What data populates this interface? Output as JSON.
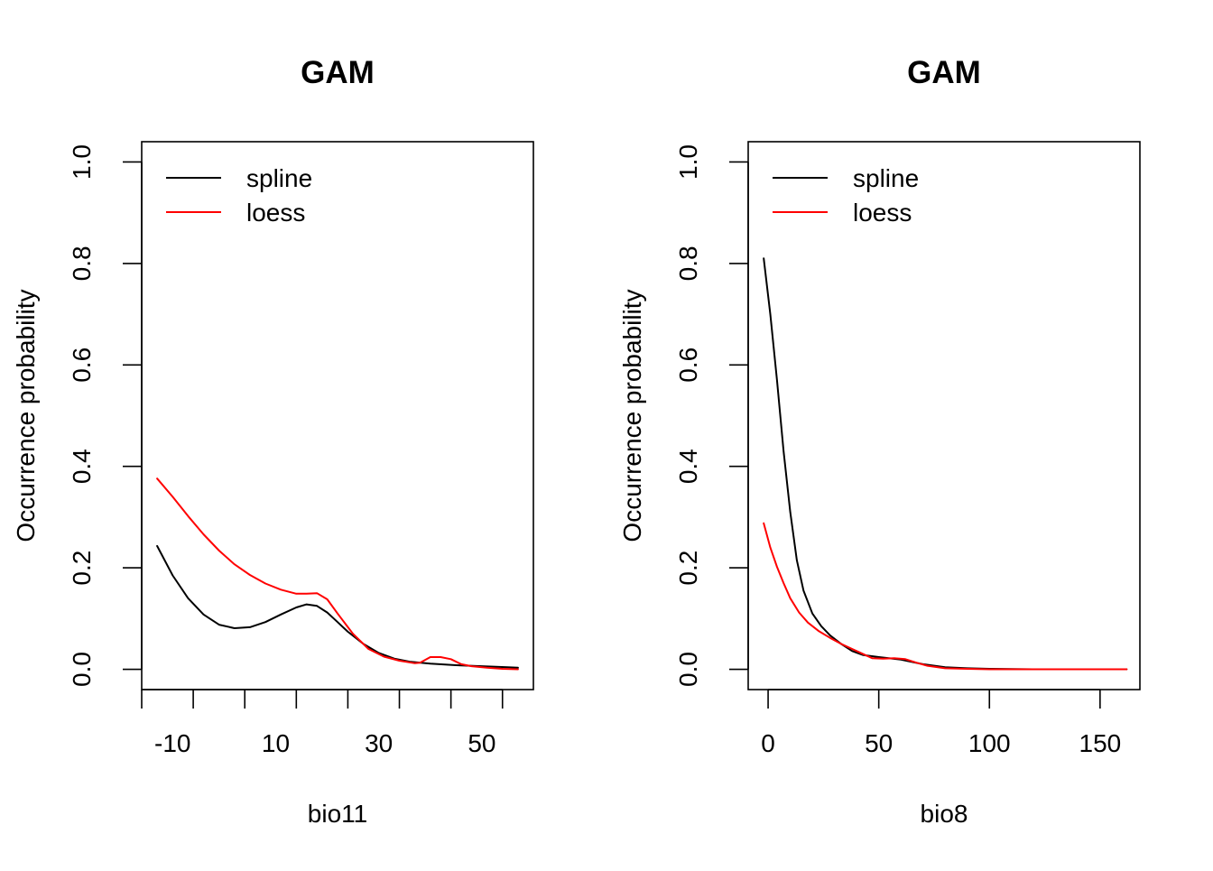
{
  "chart_data": [
    {
      "type": "line",
      "title": "GAM",
      "xlabel": "bio11",
      "ylabel": "Occurrence probability",
      "xlim": [
        -16,
        60
      ],
      "ylim": [
        -0.04,
        1.04
      ],
      "x_ticks": [
        -16,
        -6,
        4,
        14,
        24,
        34,
        44,
        54
      ],
      "x_tick_labels": [
        {
          "value": -10,
          "label": "-10"
        },
        {
          "value": 10,
          "label": "10"
        },
        {
          "value": 30,
          "label": "30"
        },
        {
          "value": 50,
          "label": "50"
        }
      ],
      "y_ticks": [
        {
          "value": 0.0,
          "label": "0.0"
        },
        {
          "value": 0.2,
          "label": "0.2"
        },
        {
          "value": 0.4,
          "label": "0.4"
        },
        {
          "value": 0.6,
          "label": "0.6"
        },
        {
          "value": 0.8,
          "label": "0.8"
        },
        {
          "value": 1.0,
          "label": "1.0"
        }
      ],
      "grid": false,
      "legend": "top-left",
      "series": [
        {
          "name": "spline",
          "color": "#000000",
          "x": [
            -13,
            -10,
            -7,
            -4,
            -1,
            2,
            5,
            8,
            11,
            14,
            16,
            18,
            20,
            22,
            24,
            27,
            30,
            33,
            36,
            40,
            45,
            50,
            55,
            57
          ],
          "y": [
            0.243,
            0.185,
            0.14,
            0.108,
            0.088,
            0.081,
            0.083,
            0.093,
            0.108,
            0.122,
            0.128,
            0.125,
            0.112,
            0.093,
            0.074,
            0.05,
            0.032,
            0.021,
            0.015,
            0.011,
            0.008,
            0.006,
            0.004,
            0.003
          ]
        },
        {
          "name": "loess",
          "color": "#ff0000",
          "x": [
            -13,
            -10,
            -7,
            -4,
            -1,
            2,
            5,
            8,
            11,
            14,
            16,
            18,
            20,
            22,
            25,
            28,
            31,
            34,
            37,
            38,
            40,
            42,
            44,
            46,
            48,
            51,
            54,
            57
          ],
          "y": [
            0.376,
            0.34,
            0.302,
            0.266,
            0.234,
            0.207,
            0.186,
            0.169,
            0.157,
            0.149,
            0.149,
            0.15,
            0.138,
            0.11,
            0.07,
            0.04,
            0.025,
            0.017,
            0.012,
            0.013,
            0.024,
            0.024,
            0.02,
            0.01,
            0.006,
            0.003,
            0.001,
            0.0
          ]
        }
      ]
    },
    {
      "type": "line",
      "title": "GAM",
      "xlabel": "bio8",
      "ylabel": "Occurrence probability",
      "xlim": [
        -9,
        168
      ],
      "ylim": [
        -0.04,
        1.04
      ],
      "x_ticks": [
        0,
        50,
        100,
        150
      ],
      "x_tick_labels": [
        {
          "value": 0,
          "label": "0"
        },
        {
          "value": 50,
          "label": "50"
        },
        {
          "value": 100,
          "label": "100"
        },
        {
          "value": 150,
          "label": "150"
        }
      ],
      "y_ticks": [
        {
          "value": 0.0,
          "label": "0.0"
        },
        {
          "value": 0.2,
          "label": "0.2"
        },
        {
          "value": 0.4,
          "label": "0.4"
        },
        {
          "value": 0.6,
          "label": "0.6"
        },
        {
          "value": 0.8,
          "label": "0.8"
        },
        {
          "value": 1.0,
          "label": "1.0"
        }
      ],
      "grid": false,
      "legend": "top-left",
      "series": [
        {
          "name": "spline",
          "color": "#000000",
          "x": [
            -2,
            1,
            4,
            7,
            10,
            13,
            16,
            20,
            24,
            28,
            33,
            38,
            43,
            50,
            60,
            70,
            80,
            90,
            100,
            120,
            140,
            162
          ],
          "y": [
            0.81,
            0.7,
            0.57,
            0.43,
            0.31,
            0.215,
            0.155,
            0.11,
            0.085,
            0.067,
            0.05,
            0.036,
            0.028,
            0.024,
            0.019,
            0.01,
            0.004,
            0.002,
            0.001,
            0.0,
            0.0,
            0.0
          ]
        },
        {
          "name": "loess",
          "color": "#ff0000",
          "x": [
            -2,
            1,
            4,
            7,
            10,
            14,
            18,
            23,
            28,
            33,
            38,
            43,
            47,
            52,
            57,
            62,
            67,
            72,
            80,
            90,
            100,
            120,
            140,
            162
          ],
          "y": [
            0.288,
            0.24,
            0.202,
            0.17,
            0.14,
            0.112,
            0.092,
            0.075,
            0.062,
            0.05,
            0.04,
            0.03,
            0.022,
            0.021,
            0.022,
            0.02,
            0.013,
            0.007,
            0.002,
            0.001,
            0.0,
            0.0,
            0.0,
            0.0
          ]
        }
      ]
    }
  ]
}
